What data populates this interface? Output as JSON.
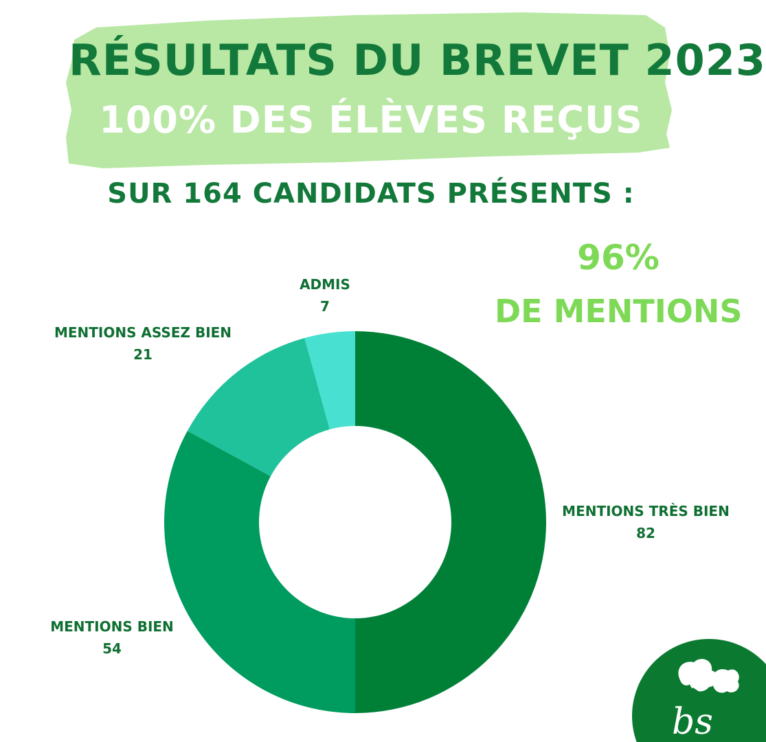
{
  "header": {
    "title": "RÉSULTATS DU BREVET 2023",
    "subtitle": "100% DES ÉLÈVES REÇUS",
    "candidates": "SUR 164 CANDIDATS PRÉSENTS :"
  },
  "highlight": {
    "percent": "96%",
    "label": "DE MENTIONS"
  },
  "chart_data": {
    "type": "pie",
    "title": "",
    "categories": [
      "MENTIONS TRÈS BIEN",
      "MENTIONS BIEN",
      "MENTIONS ASSEZ BIEN",
      "ADMIS"
    ],
    "values": [
      82,
      54,
      21,
      7
    ],
    "colors": [
      "#008037",
      "#009b5e",
      "#20c29b",
      "#48e0d0"
    ],
    "donut": true
  },
  "logo": {
    "text": "bs",
    "icon": "leaf-icon"
  },
  "colors": {
    "banner": "#b8e8a4",
    "dark_green": "#12793a",
    "light_green": "#7ed957",
    "logo_bg": "#0b7a30"
  }
}
